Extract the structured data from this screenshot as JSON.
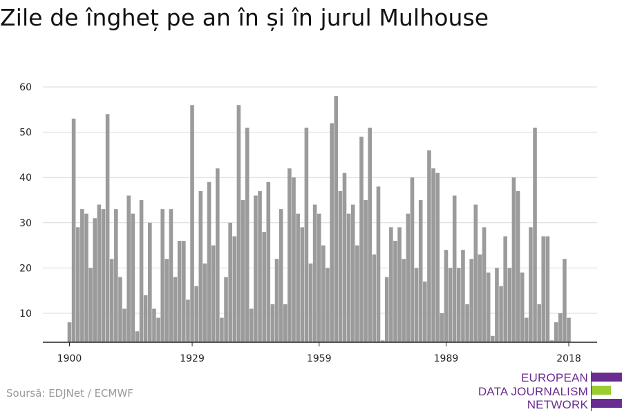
{
  "chart_data": {
    "type": "bar",
    "title": "Zile de îngheț pe an în și în jurul Mulhouse",
    "xlabel": "",
    "ylabel": "",
    "x_start": 1900,
    "x_ticks": [
      "1900",
      "1929",
      "1959",
      "1989",
      "2018"
    ],
    "y_ticks": [
      "10",
      "20",
      "30",
      "40",
      "50",
      "60"
    ],
    "ylim": [
      4,
      62
    ],
    "grid": true,
    "bar_color": "#9b9b9b",
    "values": [
      8,
      53,
      29,
      33,
      32,
      20,
      31,
      34,
      33,
      54,
      22,
      33,
      18,
      11,
      36,
      32,
      6,
      35,
      14,
      30,
      11,
      9,
      33,
      22,
      33,
      18,
      26,
      26,
      13,
      56,
      16,
      37,
      21,
      39,
      25,
      42,
      9,
      18,
      30,
      27,
      56,
      35,
      51,
      11,
      36,
      37,
      28,
      39,
      12,
      22,
      33,
      12,
      42,
      40,
      32,
      29,
      51,
      21,
      34,
      32,
      25,
      20,
      52,
      58,
      37,
      41,
      32,
      34,
      25,
      49,
      35,
      51,
      23,
      38,
      4,
      18,
      29,
      26,
      29,
      22,
      32,
      40,
      20,
      35,
      17,
      46,
      42,
      41,
      10,
      24,
      20,
      36,
      20,
      24,
      12,
      22,
      34,
      23,
      29,
      19,
      5,
      20,
      16,
      27,
      20,
      40,
      37,
      19,
      9,
      29,
      51,
      12,
      27,
      27,
      4,
      8,
      10,
      22,
      9
    ]
  },
  "source": "Soursă: EDJNet / ECMWF",
  "logo": {
    "lines": [
      "EUROPEAN",
      "DATA JOURNALISM",
      "NETWORK"
    ],
    "purple": "#6a2c91",
    "green": "#9acd32"
  }
}
